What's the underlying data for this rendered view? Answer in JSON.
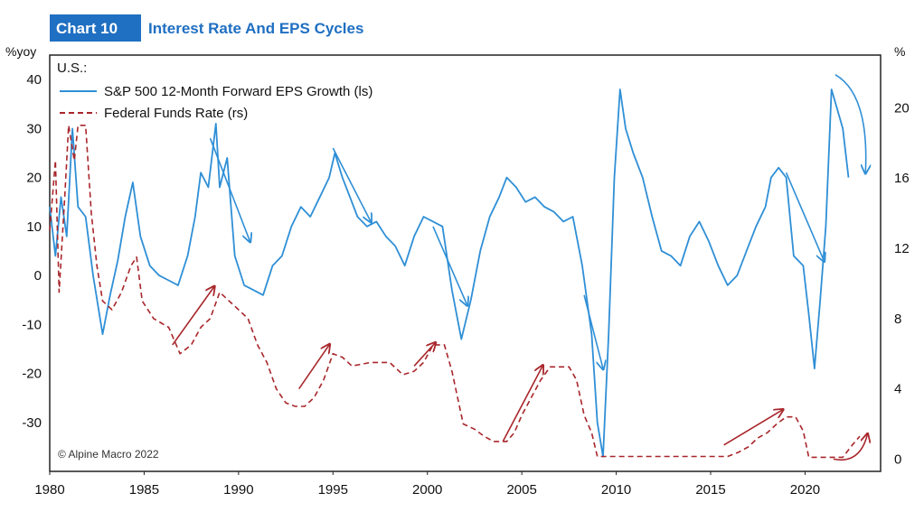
{
  "header": {
    "badge": "Chart 10",
    "title": "Interest Rate And EPS Cycles"
  },
  "colors": {
    "badge_bg": "#1f6fc2",
    "eps_line": "#2f8fd6",
    "ffr_line": "#a8262b",
    "eps_arrow": "#2f8fd6",
    "ffr_arrow": "#a8262b"
  },
  "chart_data": {
    "type": "line",
    "region_label": "U.S.:",
    "left_axis_unit": "%yoy",
    "right_axis_unit": "%",
    "credit": "© Alpine Macro 2022",
    "x_ticks": [
      "1980",
      "1985",
      "1990",
      "1995",
      "2000",
      "2005",
      "2010",
      "2015",
      "2020"
    ],
    "x_range": [
      1980,
      2024
    ],
    "left_ticks": [
      "40",
      "30",
      "20",
      "10",
      "0",
      "-10",
      "-20",
      "-30"
    ],
    "left_range": [
      -40,
      45
    ],
    "right_ticks": [
      "20",
      "16",
      "12",
      "8",
      "4",
      "0"
    ],
    "right_range": [
      -0.7,
      23
    ],
    "legend_position": "top-left",
    "series": [
      {
        "name": "S&P 500 12-Month Forward EPS Growth (ls)",
        "axis": "left",
        "style": "solid",
        "points": [
          [
            1980.0,
            14
          ],
          [
            1980.3,
            4
          ],
          [
            1980.6,
            16
          ],
          [
            1980.9,
            8
          ],
          [
            1981.2,
            30
          ],
          [
            1981.5,
            14
          ],
          [
            1981.9,
            12
          ],
          [
            1982.3,
            0
          ],
          [
            1982.8,
            -12
          ],
          [
            1983.2,
            -4
          ],
          [
            1983.6,
            3
          ],
          [
            1984.0,
            12
          ],
          [
            1984.4,
            19
          ],
          [
            1984.8,
            8
          ],
          [
            1985.3,
            2
          ],
          [
            1985.8,
            0
          ],
          [
            1986.3,
            -1
          ],
          [
            1986.8,
            -2
          ],
          [
            1987.3,
            4
          ],
          [
            1987.7,
            12
          ],
          [
            1988.0,
            21
          ],
          [
            1988.4,
            18
          ],
          [
            1988.8,
            31
          ],
          [
            1989.0,
            18
          ],
          [
            1989.4,
            24
          ],
          [
            1989.8,
            4
          ],
          [
            1990.3,
            -2
          ],
          [
            1990.8,
            -3
          ],
          [
            1991.3,
            -4
          ],
          [
            1991.8,
            2
          ],
          [
            1992.3,
            4
          ],
          [
            1992.8,
            10
          ],
          [
            1993.3,
            14
          ],
          [
            1993.8,
            12
          ],
          [
            1994.3,
            16
          ],
          [
            1994.8,
            20
          ],
          [
            1995.1,
            25
          ],
          [
            1995.5,
            20
          ],
          [
            1995.9,
            16
          ],
          [
            1996.3,
            12
          ],
          [
            1996.8,
            10
          ],
          [
            1997.3,
            11
          ],
          [
            1997.8,
            8
          ],
          [
            1998.3,
            6
          ],
          [
            1998.8,
            2
          ],
          [
            1999.3,
            8
          ],
          [
            1999.8,
            12
          ],
          [
            2000.3,
            11
          ],
          [
            2000.8,
            10
          ],
          [
            2001.3,
            -3
          ],
          [
            2001.8,
            -13
          ],
          [
            2002.3,
            -5
          ],
          [
            2002.8,
            5
          ],
          [
            2003.3,
            12
          ],
          [
            2003.8,
            16
          ],
          [
            2004.2,
            20
          ],
          [
            2004.7,
            18
          ],
          [
            2005.2,
            15
          ],
          [
            2005.7,
            16
          ],
          [
            2006.2,
            14
          ],
          [
            2006.7,
            13
          ],
          [
            2007.2,
            11
          ],
          [
            2007.7,
            12
          ],
          [
            2008.2,
            2
          ],
          [
            2008.7,
            -12
          ],
          [
            2009.0,
            -30
          ],
          [
            2009.3,
            -37
          ],
          [
            2009.6,
            -12
          ],
          [
            2009.9,
            20
          ],
          [
            2010.2,
            38
          ],
          [
            2010.5,
            30
          ],
          [
            2010.9,
            25
          ],
          [
            2011.4,
            20
          ],
          [
            2011.9,
            12
          ],
          [
            2012.4,
            5
          ],
          [
            2012.9,
            4
          ],
          [
            2013.4,
            2
          ],
          [
            2013.9,
            8
          ],
          [
            2014.4,
            11
          ],
          [
            2014.9,
            7
          ],
          [
            2015.4,
            2
          ],
          [
            2015.9,
            -2
          ],
          [
            2016.4,
            0
          ],
          [
            2016.9,
            5
          ],
          [
            2017.4,
            10
          ],
          [
            2017.9,
            14
          ],
          [
            2018.2,
            20
          ],
          [
            2018.6,
            22
          ],
          [
            2019.0,
            20
          ],
          [
            2019.4,
            4
          ],
          [
            2019.9,
            2
          ],
          [
            2020.2,
            -8
          ],
          [
            2020.5,
            -19
          ],
          [
            2020.8,
            -5
          ],
          [
            2021.1,
            10
          ],
          [
            2021.4,
            38
          ],
          [
            2021.7,
            34
          ],
          [
            2022.0,
            30
          ],
          [
            2022.3,
            20
          ]
        ]
      },
      {
        "name": "Federal Funds Rate (rs)",
        "axis": "right",
        "style": "dashed",
        "points": [
          [
            1980.0,
            13
          ],
          [
            1980.3,
            17
          ],
          [
            1980.5,
            9.5
          ],
          [
            1980.8,
            15
          ],
          [
            1981.0,
            19
          ],
          [
            1981.3,
            17
          ],
          [
            1981.5,
            19
          ],
          [
            1981.9,
            19
          ],
          [
            1982.2,
            14
          ],
          [
            1982.5,
            11
          ],
          [
            1982.8,
            9
          ],
          [
            1983.3,
            8.5
          ],
          [
            1983.8,
            9.5
          ],
          [
            1984.3,
            11
          ],
          [
            1984.6,
            11.5
          ],
          [
            1984.9,
            9
          ],
          [
            1985.5,
            8
          ],
          [
            1986.3,
            7.5
          ],
          [
            1986.9,
            6
          ],
          [
            1987.5,
            6.5
          ],
          [
            1988.0,
            7.5
          ],
          [
            1988.5,
            8
          ],
          [
            1989.0,
            9.5
          ],
          [
            1989.5,
            9
          ],
          [
            1990.0,
            8.5
          ],
          [
            1990.5,
            8
          ],
          [
            1991.0,
            6.5
          ],
          [
            1991.5,
            5.5
          ],
          [
            1992.0,
            4
          ],
          [
            1992.5,
            3.2
          ],
          [
            1993.0,
            3
          ],
          [
            1993.5,
            3
          ],
          [
            1994.0,
            3.5
          ],
          [
            1994.5,
            4.5
          ],
          [
            1995.0,
            6
          ],
          [
            1995.5,
            5.8
          ],
          [
            1996.0,
            5.3
          ],
          [
            1997.0,
            5.5
          ],
          [
            1998.0,
            5.5
          ],
          [
            1998.7,
            4.8
          ],
          [
            1999.3,
            5
          ],
          [
            1999.8,
            5.5
          ],
          [
            2000.3,
            6.5
          ],
          [
            2000.9,
            6.5
          ],
          [
            2001.3,
            5
          ],
          [
            2001.6,
            3.5
          ],
          [
            2001.9,
            2
          ],
          [
            2002.5,
            1.7
          ],
          [
            2003.0,
            1.3
          ],
          [
            2003.5,
            1
          ],
          [
            2004.2,
            1
          ],
          [
            2004.6,
            1.5
          ],
          [
            2005.0,
            2.5
          ],
          [
            2005.5,
            3.5
          ],
          [
            2006.0,
            4.5
          ],
          [
            2006.5,
            5.25
          ],
          [
            2007.5,
            5.25
          ],
          [
            2007.9,
            4.5
          ],
          [
            2008.3,
            2.5
          ],
          [
            2008.7,
            1.5
          ],
          [
            2009.0,
            0.15
          ],
          [
            2015.9,
            0.15
          ],
          [
            2016.5,
            0.4
          ],
          [
            2017.0,
            0.7
          ],
          [
            2017.5,
            1.2
          ],
          [
            2018.0,
            1.5
          ],
          [
            2018.5,
            2
          ],
          [
            2019.0,
            2.4
          ],
          [
            2019.5,
            2.4
          ],
          [
            2019.9,
            1.6
          ],
          [
            2020.2,
            0.1
          ],
          [
            2022.0,
            0.1
          ],
          [
            2022.5,
            0.8
          ],
          [
            2022.9,
            1.3
          ]
        ]
      }
    ],
    "annotations": [
      {
        "kind": "arrow",
        "color": "eps",
        "from": [
          1988.5,
          28
        ],
        "to": [
          1990.6,
          7
        ]
      },
      {
        "kind": "arrow",
        "color": "eps",
        "from": [
          1995.0,
          26
        ],
        "to": [
          1997.0,
          11
        ]
      },
      {
        "kind": "arrow",
        "color": "eps",
        "from": [
          2000.3,
          10
        ],
        "to": [
          2002.1,
          -6
        ]
      },
      {
        "kind": "arrow",
        "color": "eps",
        "from": [
          2008.3,
          -4
        ],
        "to": [
          2009.3,
          -19
        ]
      },
      {
        "kind": "arrow",
        "color": "eps",
        "from": [
          2019.0,
          21
        ],
        "to": [
          2021.0,
          3
        ]
      },
      {
        "kind": "curve",
        "color": "eps",
        "from": [
          2021.6,
          41
        ],
        "via": [
          2023.4,
          37
        ],
        "to": [
          2023.2,
          21
        ]
      },
      {
        "kind": "arrow",
        "color": "ffr",
        "from": [
          1986.5,
          6.5
        ],
        "to": [
          1988.7,
          9.8
        ]
      },
      {
        "kind": "arrow",
        "color": "ffr",
        "from": [
          1993.2,
          4
        ],
        "to": [
          1994.8,
          6.5
        ]
      },
      {
        "kind": "arrow",
        "color": "ffr",
        "from": [
          1999.3,
          5.3
        ],
        "to": [
          2000.4,
          6.6
        ]
      },
      {
        "kind": "arrow",
        "color": "ffr",
        "from": [
          2004.0,
          1
        ],
        "to": [
          2006.1,
          5.3
        ]
      },
      {
        "kind": "arrow",
        "color": "ffr",
        "from": [
          2015.7,
          0.8
        ],
        "to": [
          2018.8,
          2.8
        ]
      },
      {
        "kind": "curve",
        "color": "ffr",
        "from": [
          2021.5,
          0
        ],
        "via": [
          2022.9,
          -0.3
        ],
        "to": [
          2023.3,
          1.4
        ]
      }
    ]
  }
}
